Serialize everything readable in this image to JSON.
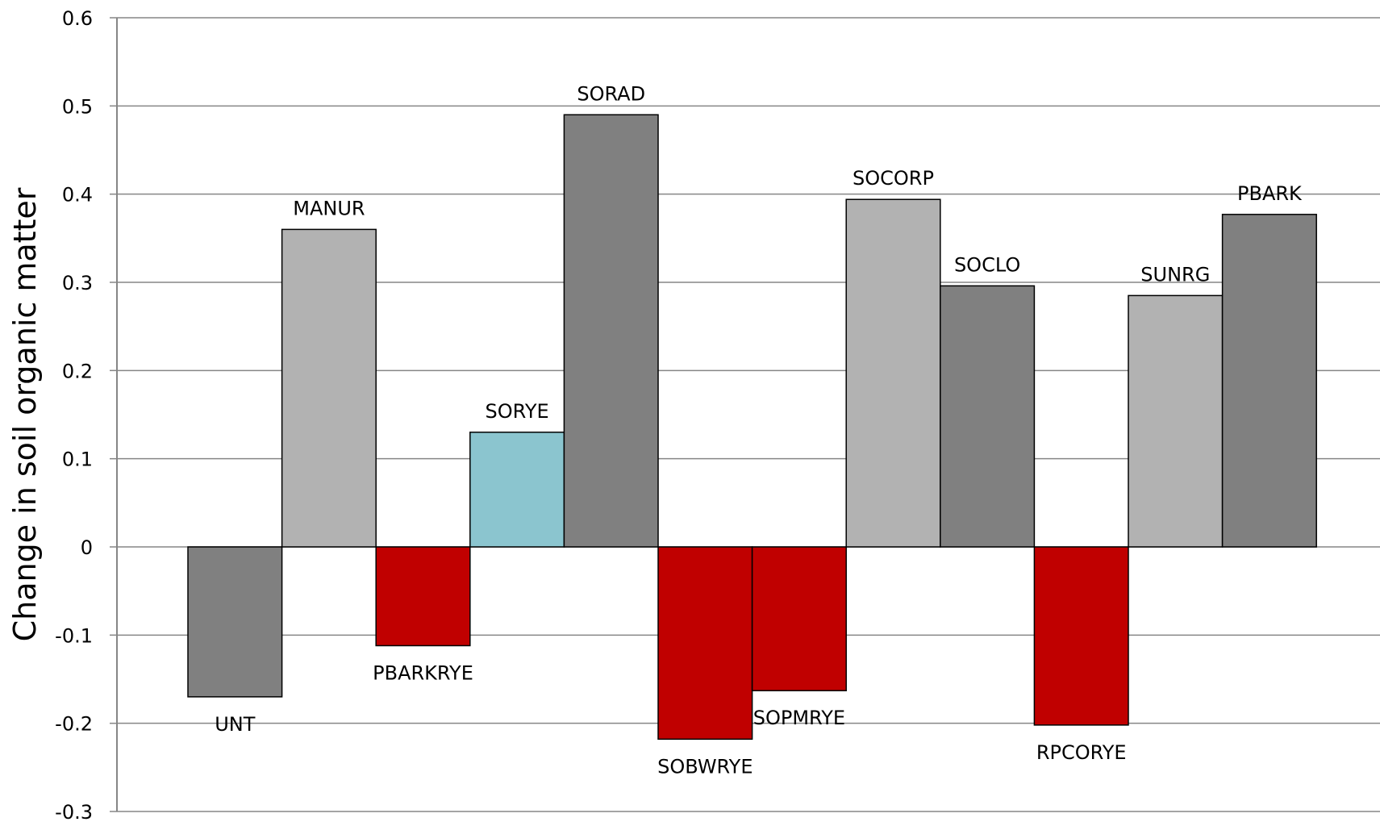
{
  "chart_data": {
    "type": "bar",
    "title": "",
    "xlabel": "",
    "ylabel": "Change in soil organic matter",
    "ylim": [
      -0.3,
      0.6
    ],
    "y_ticks": [
      0.6,
      0.5,
      0.4,
      0.3,
      0.2,
      0.1,
      0,
      -0.1,
      -0.2,
      -0.3
    ],
    "y_tick_labels": [
      "0.6",
      "0.5",
      "0.4",
      "0.3",
      "0.2",
      "0.1",
      "0",
      "-0.1",
      "-0.2",
      "-0.3"
    ],
    "grid": true,
    "legend": "none",
    "categories": [
      "UNT",
      "MANUR",
      "PBARKRYE",
      "SORYE",
      "SORAD",
      "SOBWRYE",
      "SOPMRYE",
      "SOCORP",
      "SOCLO",
      "RPCORYE",
      "SUNRG",
      "PBARK"
    ],
    "values": [
      -0.17,
      0.36,
      -0.112,
      0.13,
      0.49,
      -0.218,
      -0.163,
      0.394,
      0.296,
      -0.202,
      0.285,
      0.377
    ],
    "colors": [
      "#808080",
      "#b2b2b2",
      "#c00000",
      "#8bc5cf",
      "#808080",
      "#c00000",
      "#c00000",
      "#b2b2b2",
      "#808080",
      "#c00000",
      "#b2b2b2",
      "#808080"
    ]
  }
}
